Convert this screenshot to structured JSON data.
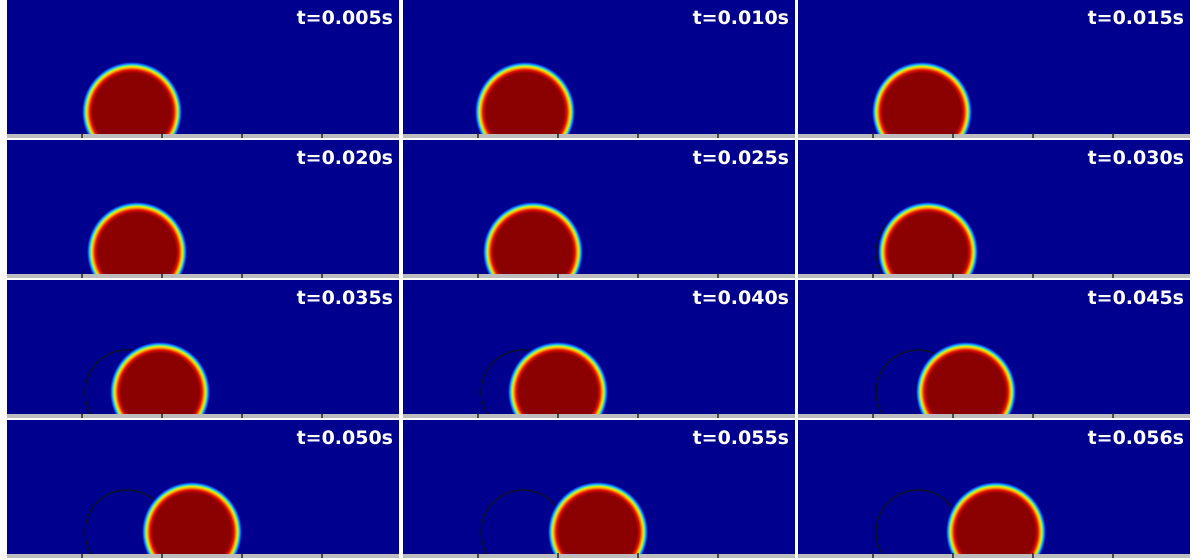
{
  "panels": [
    {
      "label": "t=0.005s"
    },
    {
      "label": "t=0.010s"
    },
    {
      "label": "t=0.015s"
    },
    {
      "label": "t=0.020s"
    },
    {
      "label": "t=0.025s"
    },
    {
      "label": "t=0.030s"
    },
    {
      "label": "t=0.035s"
    },
    {
      "label": "t=0.040s"
    },
    {
      "label": "t=0.045s"
    },
    {
      "label": "t=0.050s"
    },
    {
      "label": "t=0.055s"
    },
    {
      "label": "t=0.056s"
    }
  ]
}
